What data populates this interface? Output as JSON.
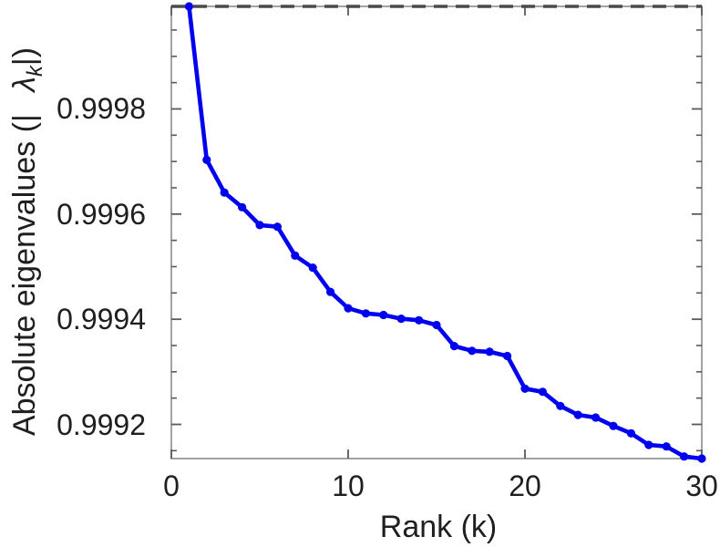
{
  "figure": {
    "xlabel": "Rank (k)",
    "ylabel_prefix": "Absolute eigenvalues (|",
    "ylabel_symbol": "λ",
    "ylabel_subscript": "k",
    "ylabel_suffix": "|)"
  },
  "chart_data": {
    "type": "line",
    "title": "",
    "xlabel": "Rank (k)",
    "ylabel": "Absolute eigenvalues (|λ_k|)",
    "x": [
      1,
      2,
      3,
      4,
      5,
      6,
      7,
      8,
      9,
      10,
      11,
      12,
      13,
      14,
      15,
      16,
      17,
      18,
      19,
      20,
      21,
      22,
      23,
      24,
      25,
      26,
      27,
      28,
      29,
      30
    ],
    "series": [
      {
        "name": "absolute eigenvalues",
        "values": [
          0.999995,
          0.999703,
          0.999641,
          0.999613,
          0.999579,
          0.999576,
          0.999521,
          0.999498,
          0.999452,
          0.999421,
          0.999411,
          0.999408,
          0.999401,
          0.999398,
          0.999389,
          0.999349,
          0.99934,
          0.999338,
          0.99933,
          0.999268,
          0.999262,
          0.999235,
          0.999218,
          0.999213,
          0.999197,
          0.999183,
          0.999161,
          0.999158,
          0.999139,
          0.999135
        ]
      }
    ],
    "xlim": [
      0,
      30
    ],
    "ylim": [
      0.999135,
      0.999995
    ],
    "xticks": [
      0,
      10,
      20,
      30
    ],
    "xtick_labels": [
      "0",
      "10",
      "20",
      "30"
    ],
    "yticks": [
      0.9992,
      0.9994,
      0.9996,
      0.9998
    ],
    "ytick_labels": [
      "0.9992",
      "0.9994",
      "0.9996",
      "0.9998"
    ],
    "y_minor_tick_step": 5e-05,
    "reference_line": {
      "y": 1.0,
      "style": "dashed",
      "color": "#4a4a4a"
    },
    "line_color": "#0000f0",
    "marker": "circle",
    "grid": false,
    "legend": null,
    "box_color": "#8c8c8c",
    "tick_color": "#5a5a5a",
    "text_color": "#1f1f1f"
  }
}
